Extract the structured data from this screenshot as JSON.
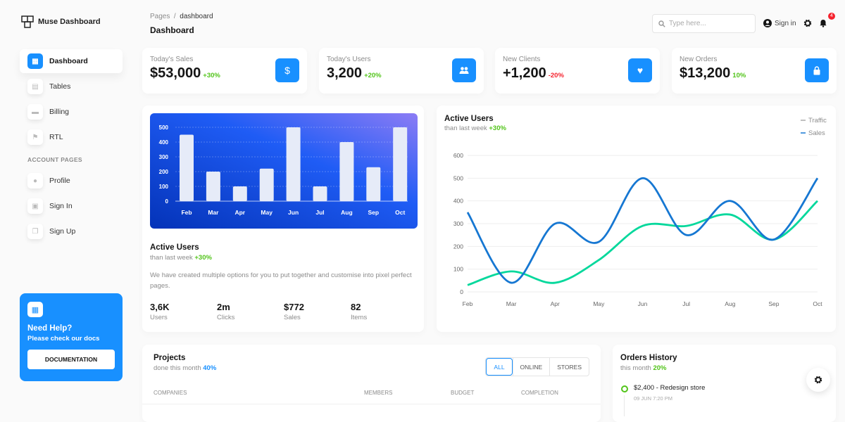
{
  "brand": {
    "name": "Muse Dashboard"
  },
  "sidebar": {
    "items": [
      {
        "label": "Dashboard",
        "icon": "dashboard-icon"
      },
      {
        "label": "Tables",
        "icon": "table-icon"
      },
      {
        "label": "Billing",
        "icon": "billing-icon"
      },
      {
        "label": "RTL",
        "icon": "rtl-icon"
      }
    ],
    "section": "ACCOUNT PAGES",
    "account": [
      {
        "label": "Profile",
        "icon": "profile-icon"
      },
      {
        "label": "Sign In",
        "icon": "sign-in-icon"
      },
      {
        "label": "Sign Up",
        "icon": "sign-up-icon"
      }
    ],
    "help": {
      "title": "Need Help?",
      "text": "Please check our docs",
      "button": "DOCUMENTATION"
    }
  },
  "header": {
    "breadcrumb": [
      "Pages",
      "dashboard"
    ],
    "title": "Dashboard",
    "search_placeholder": "Type here...",
    "sign_in": "Sign in",
    "notifications": "4"
  },
  "stats": [
    {
      "label": "Today's Sales",
      "value": "$53,000",
      "change": "+30%",
      "trend": "up",
      "icon": "dollar-icon"
    },
    {
      "label": "Today's Users",
      "value": "3,200",
      "change": "+20%",
      "trend": "up",
      "icon": "users-icon"
    },
    {
      "label": "New Clients",
      "value": "+1,200",
      "change": "-20%",
      "trend": "down",
      "icon": "heart-icon"
    },
    {
      "label": "New Orders",
      "value": "$13,200",
      "change": "10%",
      "trend": "up",
      "icon": "bag-icon"
    }
  ],
  "bar_card": {
    "title": "Active Users",
    "sub": "than last week",
    "change": "+30%",
    "desc": "We have created multiple options for you to put together and customise into pixel perfect pages.",
    "metrics": [
      {
        "value": "3,6K",
        "label": "Users"
      },
      {
        "value": "2m",
        "label": "Clicks"
      },
      {
        "value": "$772",
        "label": "Sales"
      },
      {
        "value": "82",
        "label": "Items"
      }
    ]
  },
  "line_card": {
    "title": "Active Users",
    "sub": "than last week",
    "change": "+30%"
  },
  "projects": {
    "title": "Projects",
    "sub": "done this month",
    "pct": "40%",
    "filters": [
      "ALL",
      "ONLINE",
      "STORES"
    ],
    "columns": [
      "COMPANIES",
      "MEMBERS",
      "BUDGET",
      "COMPLETION"
    ]
  },
  "orders": {
    "title": "Orders History",
    "sub": "this month",
    "pct": "20%",
    "items": [
      {
        "title": "$2,400 - Redesign store",
        "time": "09 JUN 7:20 PM"
      }
    ]
  },
  "chart_data": [
    {
      "type": "bar",
      "categories": [
        "Feb",
        "Mar",
        "Apr",
        "May",
        "Jun",
        "Jul",
        "Aug",
        "Sep",
        "Oct"
      ],
      "values": [
        450,
        200,
        100,
        220,
        500,
        100,
        400,
        230,
        500
      ],
      "ylim": [
        0,
        500
      ],
      "yticks": [
        0,
        100,
        200,
        300,
        400,
        500
      ],
      "grid": true,
      "colors": {
        "bar": "#e6ebf8"
      }
    },
    {
      "type": "line",
      "categories": [
        "Feb",
        "Mar",
        "Apr",
        "May",
        "Jun",
        "Jul",
        "Aug",
        "Sep",
        "Oct"
      ],
      "ylim": [
        0,
        600
      ],
      "yticks": [
        0,
        100,
        200,
        300,
        400,
        500,
        600
      ],
      "grid": true,
      "legend": "top-right",
      "series": [
        {
          "name": "Traffic",
          "values": [
            30,
            90,
            40,
            140,
            290,
            290,
            340,
            230,
            400
          ],
          "color": "#05d89c"
        },
        {
          "name": "Sales",
          "values": [
            350,
            40,
            300,
            220,
            500,
            250,
            400,
            230,
            500
          ],
          "color": "#1677d2"
        }
      ]
    }
  ]
}
